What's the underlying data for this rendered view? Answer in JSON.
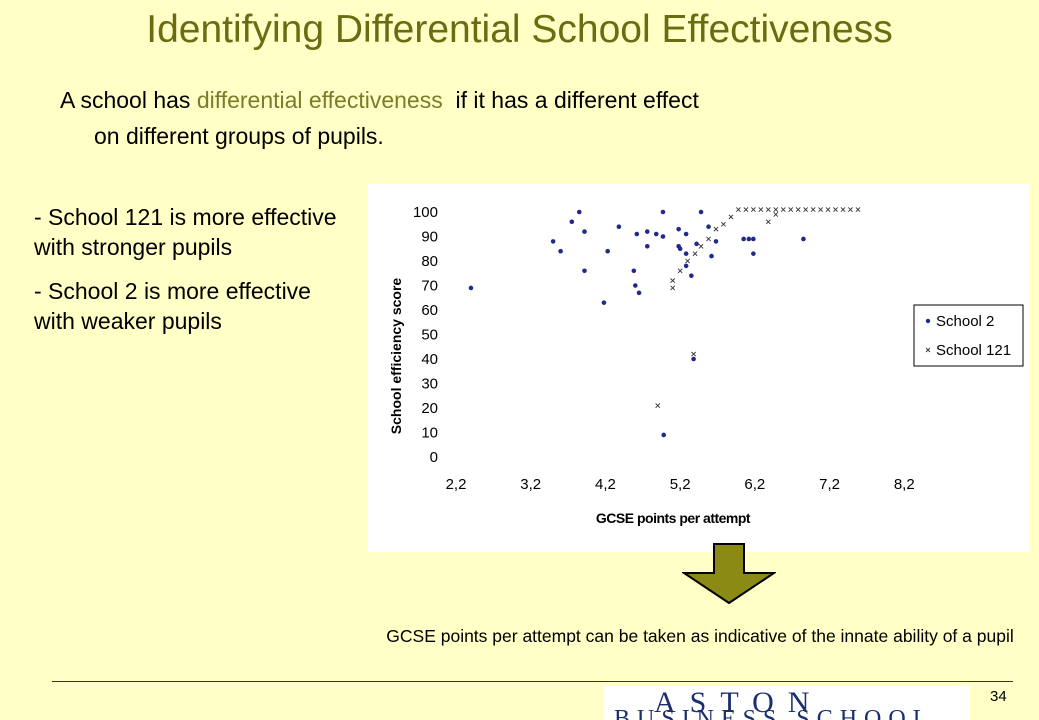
{
  "slide": {
    "title": "Identifying Differential School Effectiveness",
    "intro_before": "A school has ",
    "intro_highlight": "differential effectiveness",
    "intro_after": "  if it has a different effect",
    "intro_line2": "on different groups of pupils.",
    "bullets": [
      "- School 121 is  more effective with stronger pupils",
      "- School 2 is more effective with weaker pupils"
    ],
    "note": "GCSE points per attempt can be taken as indicative of the innate ability of a pupil",
    "page_number": "34",
    "logo_line1": "ASTON",
    "logo_line2": "BUSINESS SCHOOL"
  },
  "colors": {
    "background": "#FFFFC6",
    "title": "#6B6B12",
    "highlight": "#7B7B2A",
    "school2": "#1F2A8A",
    "school121": "#333333",
    "arrow": "#8A8A14"
  },
  "chart_data": {
    "type": "scatter",
    "xlabel": "GCSE points per attempt",
    "ylabel": "School efficiency score",
    "xlim": [
      2.2,
      9.2
    ],
    "ylim": [
      0,
      100
    ],
    "xticks": [
      "2,2",
      "3,2",
      "4,2",
      "5,2",
      "6,2",
      "7,2",
      "8,2"
    ],
    "yticks": [
      "0",
      "10",
      "20",
      "30",
      "40",
      "50",
      "60",
      "70",
      "80",
      "90",
      "100"
    ],
    "legend_position": "right",
    "series": [
      {
        "name": "School 2",
        "marker": "dot",
        "points": [
          [
            2.4,
            69
          ],
          [
            3.5,
            88
          ],
          [
            3.6,
            84
          ],
          [
            3.75,
            96
          ],
          [
            3.85,
            100
          ],
          [
            3.92,
            92
          ],
          [
            3.92,
            76
          ],
          [
            4.18,
            63
          ],
          [
            4.23,
            84
          ],
          [
            4.38,
            94
          ],
          [
            4.58,
            76
          ],
          [
            4.6,
            70
          ],
          [
            4.65,
            67
          ],
          [
            4.62,
            91
          ],
          [
            4.76,
            86
          ],
          [
            4.76,
            92
          ],
          [
            4.88,
            91
          ],
          [
            4.97,
            100
          ],
          [
            4.97,
            90
          ],
          [
            4.98,
            9
          ],
          [
            5.18,
            93
          ],
          [
            5.18,
            86
          ],
          [
            5.2,
            85
          ],
          [
            5.28,
            83
          ],
          [
            5.28,
            91
          ],
          [
            5.48,
            100
          ],
          [
            5.28,
            78
          ],
          [
            5.35,
            74
          ],
          [
            5.38,
            40
          ],
          [
            5.42,
            87
          ],
          [
            5.58,
            94
          ],
          [
            5.62,
            82
          ],
          [
            5.68,
            88
          ],
          [
            6.05,
            89
          ],
          [
            6.12,
            89
          ],
          [
            6.18,
            83
          ],
          [
            6.18,
            89
          ],
          [
            6.85,
            89
          ]
        ]
      },
      {
        "name": "School 121",
        "marker": "x",
        "points": [
          [
            4.9,
            21
          ],
          [
            5.1,
            69
          ],
          [
            5.1,
            72
          ],
          [
            5.2,
            76
          ],
          [
            5.3,
            80
          ],
          [
            5.38,
            42
          ],
          [
            5.4,
            83
          ],
          [
            5.48,
            86
          ],
          [
            5.58,
            89
          ],
          [
            5.68,
            93
          ],
          [
            5.78,
            95
          ],
          [
            5.88,
            98
          ],
          [
            5.98,
            101
          ],
          [
            6.08,
            101
          ],
          [
            6.18,
            101
          ],
          [
            6.28,
            101
          ],
          [
            6.38,
            101
          ],
          [
            6.48,
            101
          ],
          [
            6.58,
            101
          ],
          [
            6.68,
            101
          ],
          [
            6.78,
            101
          ],
          [
            6.88,
            101
          ],
          [
            6.98,
            101
          ],
          [
            7.08,
            101
          ],
          [
            7.18,
            101
          ],
          [
            7.28,
            101
          ],
          [
            7.38,
            101
          ],
          [
            7.48,
            101
          ],
          [
            7.58,
            101
          ],
          [
            6.38,
            96
          ],
          [
            6.48,
            99
          ]
        ]
      }
    ]
  }
}
